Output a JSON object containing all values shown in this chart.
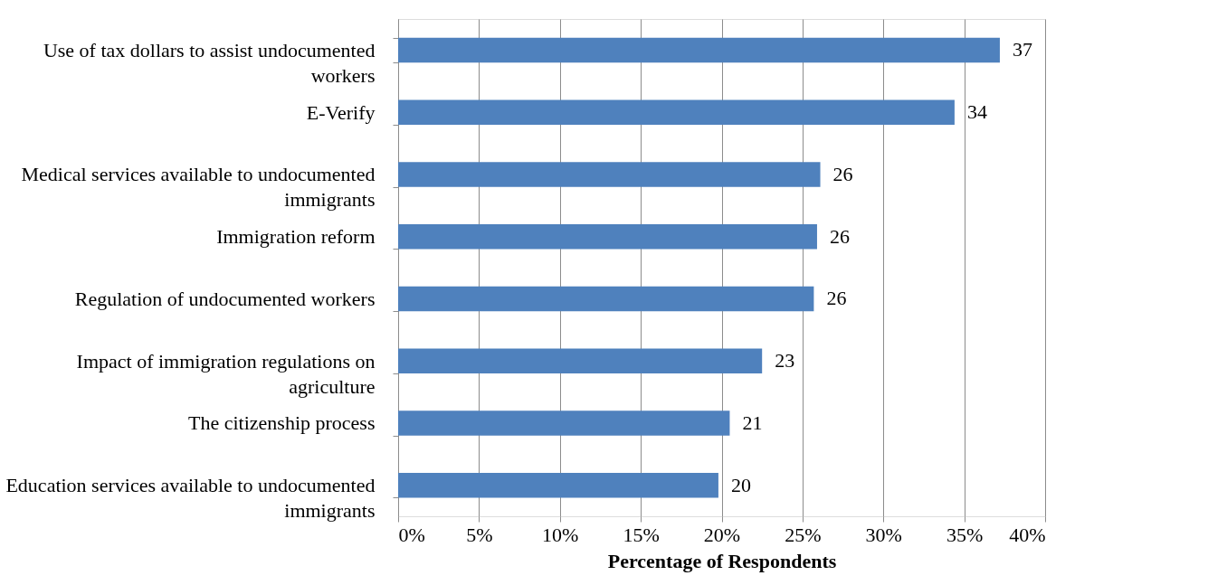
{
  "chart_data": {
    "type": "bar",
    "orientation": "horizontal",
    "xlabel": "Percentage of Respondents",
    "categories": [
      "Use of tax dollars to assist undocumented workers",
      "E-Verify",
      "Medical services available to undocumented immigrants",
      "Immigration reform",
      "Regulation of undocumented workers",
      "Impact of immigration regulations on agriculture",
      "The citizenship process",
      "Education services available to undocumented immigrants"
    ],
    "values": [
      37.2,
      34.4,
      26.1,
      25.9,
      25.7,
      22.5,
      20.5,
      19.8
    ],
    "value_labels": [
      "37",
      "34",
      "26",
      "26",
      "26",
      "23",
      "21",
      "20"
    ],
    "color": "#4f81bd",
    "xlim": [
      0,
      40
    ],
    "xticks": [
      {
        "value": 0,
        "label": "0%"
      },
      {
        "value": 5,
        "label": "5%"
      },
      {
        "value": 10,
        "label": "10%"
      },
      {
        "value": 15,
        "label": "15%"
      },
      {
        "value": 20,
        "label": "20%"
      },
      {
        "value": 25,
        "label": "25%"
      },
      {
        "value": 30,
        "label": "30%"
      },
      {
        "value": 35,
        "label": "35%"
      },
      {
        "value": 40,
        "label": "40%"
      }
    ],
    "grid": "x"
  }
}
